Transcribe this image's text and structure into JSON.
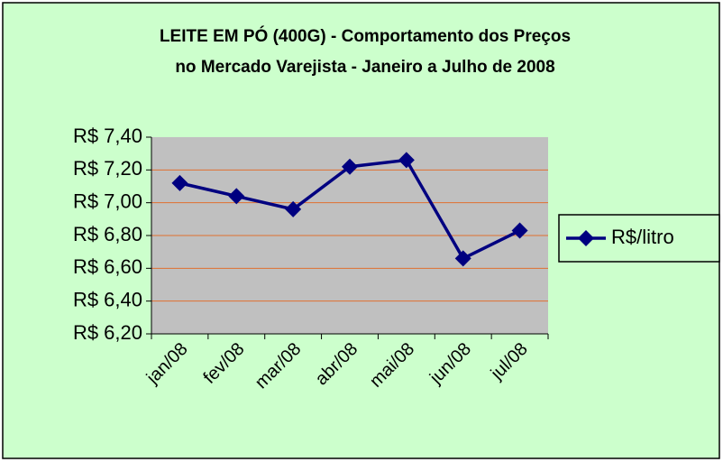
{
  "chart_data": {
    "type": "line",
    "title": [
      "LEITE EM PÓ (400G) - Comportamento dos Preços",
      "no Mercado Varejista - Janeiro a Julho de 2008"
    ],
    "categories": [
      "jan/08",
      "fev/08",
      "mar/08",
      "abr/08",
      "mai/08",
      "jun/08",
      "jul/08"
    ],
    "series": [
      {
        "name": "R$/litro",
        "color": "#000080",
        "values": [
          7.12,
          7.04,
          6.96,
          7.22,
          7.26,
          6.66,
          6.83
        ]
      }
    ],
    "ylim": [
      6.2,
      7.4
    ],
    "yticks": [
      {
        "value": 6.2,
        "label": "R$ 6,20"
      },
      {
        "value": 6.4,
        "label": "R$ 6,40"
      },
      {
        "value": 6.6,
        "label": "R$ 6,60"
      },
      {
        "value": 6.8,
        "label": "R$ 6,80"
      },
      {
        "value": 7.0,
        "label": "R$ 7,00"
      },
      {
        "value": 7.2,
        "label": "R$ 7,20"
      },
      {
        "value": 7.4,
        "label": "R$ 7,40"
      }
    ],
    "grid": true,
    "legend": "right"
  }
}
